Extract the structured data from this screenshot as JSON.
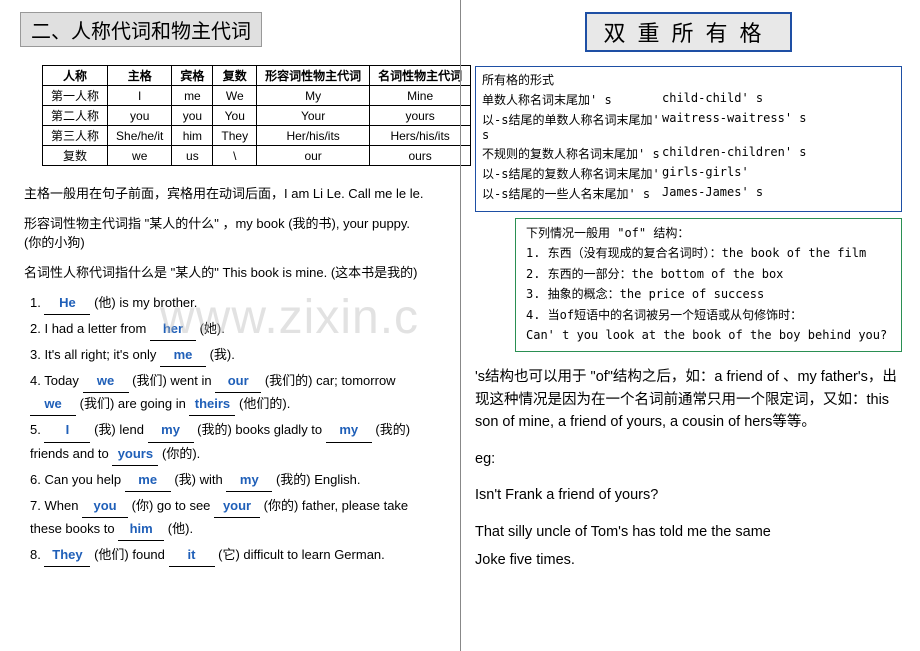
{
  "watermark": "www.zixin.c",
  "left": {
    "title": "二、人称代词和物主代词",
    "table": {
      "headers": [
        "人称",
        "主格",
        "宾格",
        "复数",
        "形容词性物主代词",
        "名词性物主代词"
      ],
      "rows": [
        [
          "第一人称",
          "I",
          "me",
          "We",
          "My",
          "Mine"
        ],
        [
          "第二人称",
          "you",
          "you",
          "You",
          "Your",
          "yours"
        ],
        [
          "第三人称",
          "She/he/it",
          "him",
          "They",
          "Her/his/its",
          "Hers/his/its"
        ],
        [
          "复数",
          "we",
          "us",
          "\\",
          "our",
          "ours"
        ]
      ]
    },
    "para1": "主格一般用在句子前面，宾格用在动词后面，I am Li Le.   Call me le le.",
    "para2a": "形容词性物主代词指 \"某人的什么\" ，my book (我的书), your puppy.",
    "para2b": "(你的小狗)",
    "para3": "名词性人称代词指什么是 \"某人的\" This book is mine.  (这本书是我的)",
    "ex": [
      {
        "n": "1.",
        "parts": [
          {
            "t": "blank",
            "v": "He"
          },
          {
            "t": "text",
            "v": " (他) is my brother."
          }
        ]
      },
      {
        "n": "2.",
        "parts": [
          {
            "t": "text",
            "v": "I had a letter from "
          },
          {
            "t": "blank",
            "v": "her"
          },
          {
            "t": "text",
            "v": " (她)."
          }
        ]
      },
      {
        "n": "3.",
        "parts": [
          {
            "t": "text",
            "v": "It's all right; it's only "
          },
          {
            "t": "blank",
            "v": "me"
          },
          {
            "t": "text",
            "v": " (我)."
          }
        ]
      },
      {
        "n": "4.",
        "parts": [
          {
            "t": "text",
            "v": "Today "
          },
          {
            "t": "blank",
            "v": "we"
          },
          {
            "t": "text",
            "v": " (我们) went in "
          },
          {
            "t": "blank",
            "v": "our"
          },
          {
            "t": "text",
            "v": " (我们的) car; tomorrow "
          },
          {
            "t": "blank",
            "v": "we"
          },
          {
            "t": "text",
            "v": " (我们) are going in "
          },
          {
            "t": "blank",
            "v": "theirs"
          },
          {
            "t": "text",
            "v": " (他们的)."
          }
        ]
      },
      {
        "n": "5.",
        "parts": [
          {
            "t": "blank",
            "v": "I"
          },
          {
            "t": "text",
            "v": " (我) lend "
          },
          {
            "t": "blank",
            "v": "my"
          },
          {
            "t": "text",
            "v": " (我的) books gladly to "
          },
          {
            "t": "blank",
            "v": "my"
          },
          {
            "t": "text",
            "v": " (我的) friends and to "
          },
          {
            "t": "blank",
            "v": "yours"
          },
          {
            "t": "text",
            "v": " (你的)."
          }
        ]
      },
      {
        "n": "6.",
        "parts": [
          {
            "t": "text",
            "v": "Can you help "
          },
          {
            "t": "blank",
            "v": "me"
          },
          {
            "t": "text",
            "v": " (我) with "
          },
          {
            "t": "blank",
            "v": "my"
          },
          {
            "t": "text",
            "v": " (我的) English."
          }
        ]
      },
      {
        "n": "7.",
        "parts": [
          {
            "t": "text",
            "v": "When "
          },
          {
            "t": "blank",
            "v": "you"
          },
          {
            "t": "text",
            "v": " (你) go to see "
          },
          {
            "t": "blank",
            "v": "your"
          },
          {
            "t": "text",
            "v": " (你的) father, please take these books to "
          },
          {
            "t": "blank",
            "v": "him"
          },
          {
            "t": "text",
            "v": " (他)."
          }
        ]
      },
      {
        "n": "8.",
        "parts": [
          {
            "t": "blank",
            "v": "They"
          },
          {
            "t": "text",
            "v": " (他们) found "
          },
          {
            "t": "blank",
            "v": "it"
          },
          {
            "t": "text",
            "v": " (它) difficult to learn German."
          }
        ]
      }
    ]
  },
  "right": {
    "title": "双重所有格",
    "blueBox": {
      "header": "所有格的形式",
      "rows": [
        [
          "单数人称名词末尾加' s",
          "child-child' s"
        ],
        [
          "以-s结尾的单数人称名词末尾加' s",
          "waitress-waitress' s"
        ],
        [
          "不规则的复数人称名词末尾加' s",
          "children-children' s"
        ],
        [
          "以-s结尾的复数人称名词末尾加'",
          "girls-girls'"
        ],
        [
          "以-s结尾的一些人名末尾加' s",
          "James-James' s"
        ]
      ]
    },
    "greenBox": [
      "下列情况一般用 \"of\" 结构：",
      "1. 东西（没有现成的复合名词时）：the book of the film",
      "2. 东西的一部分：the bottom of the box",
      "3. 抽象的概念：the price of success",
      "4. 当of短语中的名词被另一个短语或从句修饰时：",
      "   Can' t you look at the book of the boy behind you?"
    ],
    "text1": " 's结构也可以用于  \"of\"结构之后，如：a friend of  、my father's，出现这种情况是因为在一个名词前通常只用一个限定词，又如：this son of mine, a friend of yours, a cousin of hers等等。",
    "eg": "eg:",
    "eg1": "Isn't Frank a friend of yours?",
    "eg2": "That silly uncle of Tom's has told me the same",
    "eg3": "Joke five times."
  }
}
